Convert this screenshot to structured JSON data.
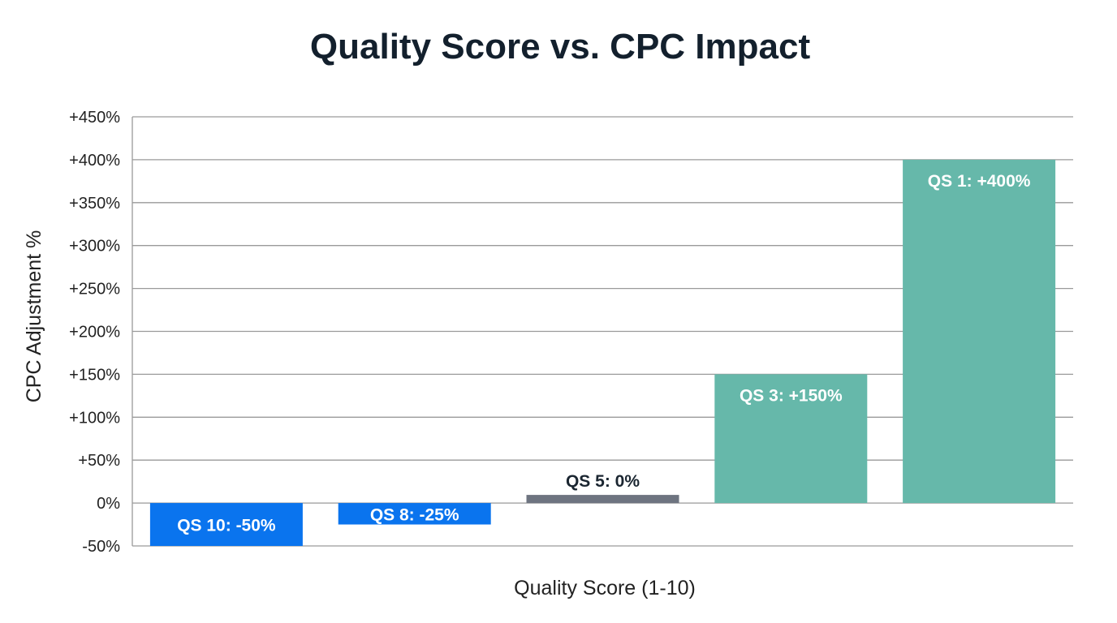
{
  "chart_data": {
    "type": "bar",
    "title": "Quality Score vs. CPC Impact",
    "xlabel": "Quality Score (1-10)",
    "ylabel": "CPC Adjustment %",
    "ylim": [
      -50,
      450
    ],
    "yticks": [
      "-50%",
      "0%",
      "+50%",
      "+100%",
      "+150%",
      "+200%",
      "+250%",
      "+300%",
      "+350%",
      "+400%",
      "+450%"
    ],
    "ytick_values": [
      -50,
      0,
      50,
      100,
      150,
      200,
      250,
      300,
      350,
      400,
      450
    ],
    "grid": true,
    "legend": "none",
    "categories": [
      "QS 10",
      "QS 8",
      "QS 5",
      "QS 3",
      "QS 1"
    ],
    "values": [
      -50,
      -25,
      0,
      150,
      400
    ],
    "data_labels": [
      "QS 10: -50%",
      "QS 8: -25%",
      "QS 5: 0%",
      "QS 3: +150%",
      "QS 1: +400%"
    ],
    "colors": [
      "#0a74ee",
      "#0a74ee",
      "#6e7480",
      "#66b8aa",
      "#66b8aa"
    ]
  }
}
